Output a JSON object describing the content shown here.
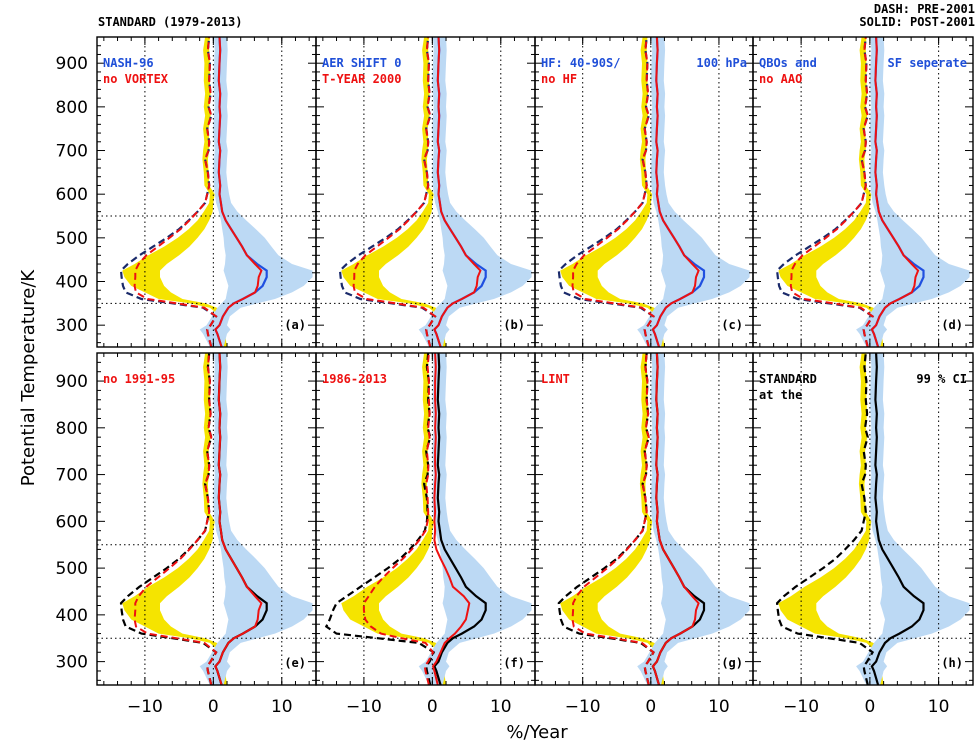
{
  "header": {
    "left": "STANDARD (1979-2013)",
    "right_line1": "DASH:   PRE-2001",
    "right_line2": "SOLID: POST-2001"
  },
  "axes": {
    "ylabel": "Potential Temperature/K",
    "xlabel": "%/Year",
    "xlim": [
      -17,
      15
    ],
    "ylim": [
      250,
      960
    ],
    "xticks": [
      -10,
      0,
      10
    ],
    "xtick_labels": [
      "−10",
      "0",
      "10"
    ],
    "yticks": [
      300,
      400,
      500,
      600,
      700,
      800,
      900
    ],
    "ytick_labels": [
      "300",
      "400",
      "500",
      "600",
      "700",
      "800",
      "900"
    ],
    "dotted_hlines": [
      350,
      550
    ],
    "dotted_vlines": [
      -10,
      0,
      10
    ]
  },
  "colors": {
    "yellow_band": "#f5e400",
    "blue_band": "#bcd9f4",
    "standard": "#000000",
    "test_pre": "#ee1111",
    "test_post": "#ee1111",
    "blue_label": "#1f4fd8",
    "red_label": "#ee1111"
  },
  "chart_data": [
    {
      "panel_label": "(a)",
      "type": "line",
      "label_line1": "NASH-96",
      "label_line1_color": "blue",
      "label_line2": "no VORTEX",
      "label_line2_color": "red",
      "label_right": "",
      "label_right_color": "blue",
      "show_test_series": true,
      "std_pre_color": "#1a2a6a",
      "std_post_color": "#2050e0"
    },
    {
      "panel_label": "(b)",
      "type": "line",
      "label_line1": "AER SHIFT 0",
      "label_line1_color": "blue",
      "label_line2": "T-YEAR 2000",
      "label_line2_color": "red",
      "label_right": "",
      "label_right_color": "blue",
      "show_test_series": true,
      "std_pre_color": "#1a2a6a",
      "std_post_color": "#2050e0"
    },
    {
      "panel_label": "(c)",
      "type": "line",
      "label_line1": "HF: 40-90S/",
      "label_line1_color": "blue",
      "label_line2": "no HF",
      "label_line2_color": "red",
      "label_right": "100 hPa",
      "label_right_color": "blue",
      "show_test_series": true,
      "std_pre_color": "#1a2a6a",
      "std_post_color": "#2050e0"
    },
    {
      "panel_label": "(d)",
      "type": "line",
      "label_line1": "QBOs and",
      "label_line1_color": "blue",
      "label_line2": "no AAO",
      "label_line2_color": "red",
      "label_right": "SF seperate",
      "label_right_color": "blue",
      "show_test_series": true,
      "std_pre_color": "#1a2a6a",
      "std_post_color": "#2050e0"
    },
    {
      "panel_label": "(e)",
      "type": "line",
      "label_line1": "no 1991-95",
      "label_line1_color": "red",
      "label_line2": "",
      "label_line2_color": "red",
      "label_right": "",
      "label_right_color": "blue",
      "show_test_series": true,
      "std_pre_color": "#000000",
      "std_post_color": "#000000"
    },
    {
      "panel_label": "(f)",
      "type": "line",
      "label_line1": "1986-2013",
      "label_line1_color": "red",
      "label_line2": "",
      "label_line2_color": "red",
      "label_right": "",
      "label_right_color": "blue",
      "show_test_series": true,
      "std_pre_color": "#000000",
      "std_post_color": "#000000",
      "variant": "shifted"
    },
    {
      "panel_label": "(g)",
      "type": "line",
      "label_line1": "LINT",
      "label_line1_color": "red",
      "label_line2": "",
      "label_line2_color": "red",
      "label_right": "",
      "label_right_color": "blue",
      "show_test_series": true,
      "std_pre_color": "#000000",
      "std_post_color": "#000000"
    },
    {
      "panel_label": "(h)",
      "type": "line",
      "label_line1": "STANDARD",
      "label_line1_color": "black",
      "label_line2": "at the",
      "label_line2_color": "black",
      "label_right": "99 % CI",
      "label_right_color": "black",
      "show_test_series": false,
      "std_pre_color": "#000000",
      "std_post_color": "#000000"
    }
  ],
  "profiles": {
    "theta": [
      250,
      280,
      290,
      300,
      320,
      340,
      350,
      360,
      375,
      390,
      410,
      425,
      440,
      460,
      480,
      500,
      520,
      540,
      560,
      580,
      600,
      620,
      650,
      680,
      700,
      720,
      750,
      780,
      800,
      830,
      860,
      900,
      930,
      960
    ],
    "std_pre": [
      -0.3,
      -0.8,
      -0.9,
      -0.4,
      0.4,
      -1.5,
      -6.0,
      -10.5,
      -12.8,
      -13.2,
      -13.4,
      -13.5,
      -12.5,
      -10.8,
      -8.8,
      -6.8,
      -5.0,
      -3.6,
      -2.3,
      -1.2,
      -0.9,
      -0.6,
      -0.8,
      -1.2,
      -0.7,
      -0.6,
      -0.9,
      -0.3,
      -0.7,
      -0.4,
      -0.6,
      -0.5,
      -0.8,
      -0.6
    ],
    "std_post": [
      1.2,
      0.6,
      0.3,
      0.9,
      1.4,
      2.2,
      3.0,
      4.3,
      6.1,
      7.2,
      7.8,
      7.8,
      6.4,
      4.9,
      4.2,
      3.4,
      2.6,
      1.8,
      1.3,
      1.1,
      0.9,
      1.0,
      0.8,
      0.9,
      1.0,
      0.8,
      0.9,
      1.0,
      0.9,
      1.0,
      0.8,
      0.9,
      1.0,
      0.9
    ],
    "yellow_low": [
      0.4,
      -0.3,
      -0.4,
      0.2,
      1.0,
      -0.5,
      -3.5,
      -8.0,
      -10.0,
      -12.0,
      -13.0,
      -13.3,
      -11.5,
      -9.5,
      -7.2,
      -5.2,
      -3.6,
      -2.3,
      -1.4,
      -0.6,
      -0.5,
      -1.3,
      -1.4,
      -1.6,
      -1.5,
      -1.3,
      -1.5,
      -1.2,
      -1.4,
      -1.2,
      -1.4,
      -1.3,
      -1.5,
      -1.2
    ],
    "yellow_high": [
      2.0,
      1.7,
      1.5,
      1.9,
      2.3,
      0.5,
      -1.2,
      -4.5,
      -6.2,
      -7.2,
      -7.8,
      -7.8,
      -6.8,
      -5.0,
      -3.5,
      -2.3,
      -1.3,
      -0.6,
      -0.1,
      0.0,
      0.2,
      -0.6,
      -0.7,
      -0.8,
      -0.6,
      -0.6,
      -0.7,
      -0.4,
      -0.6,
      -0.4,
      -0.5,
      -0.5,
      -0.6,
      -0.5
    ],
    "blue_low": [
      -0.5,
      -1.5,
      -2.0,
      -1.0,
      -0.2,
      0.6,
      1.2,
      1.8,
      2.0,
      2.2,
      1.8,
      1.5,
      1.7,
      1.8,
      1.6,
      1.5,
      1.3,
      1.1,
      0.8,
      0.4,
      0.2,
      0.1,
      0.0,
      0.1,
      0.2,
      0.1,
      0.0,
      0.1,
      0.2,
      0.1,
      0.0,
      0.1,
      0.2,
      0.1
    ],
    "blue_high": [
      1.5,
      2.0,
      2.5,
      2.0,
      2.4,
      4.0,
      6.5,
      9.0,
      11.5,
      13.2,
      14.5,
      14.5,
      11.5,
      9.5,
      8.5,
      7.5,
      6.2,
      4.8,
      3.5,
      2.6,
      2.3,
      2.1,
      1.9,
      2.0,
      2.1,
      1.9,
      2.0,
      2.1,
      2.0,
      2.1,
      1.9,
      2.0,
      2.1,
      2.0
    ],
    "test_pre_offset_dash": [
      0,
      0,
      0,
      0,
      0,
      0.2,
      0.6,
      0.9,
      1.5,
      1.7,
      2.0,
      2.1,
      1.6,
      1.0,
      0.7,
      0.4,
      0.2,
      0.1,
      0,
      0,
      0,
      0,
      0,
      0,
      0,
      0,
      0,
      0,
      0,
      0,
      0,
      0,
      0,
      0
    ],
    "test_post_scale": [
      1,
      1,
      1,
      1,
      1,
      1,
      1,
      1,
      1,
      0.9,
      0.85,
      0.9,
      0.95,
      1,
      1,
      1,
      1,
      1,
      1,
      1,
      1,
      1,
      1,
      1,
      1,
      1,
      1,
      1,
      1,
      1,
      1,
      1,
      1,
      1
    ],
    "variant_f_pre": [
      -0.3,
      -0.8,
      -0.9,
      -0.4,
      0.2,
      -2.0,
      -8.0,
      -14.0,
      -15.5,
      -15.0,
      -14.5,
      -14.0,
      -12.5,
      -10.5,
      -8.5,
      -6.5,
      -4.7,
      -3.3,
      -2.1,
      -1.1,
      -0.8,
      -0.7,
      -0.8,
      -1.2,
      -0.7,
      -0.6,
      -0.9,
      -0.3,
      -0.7,
      -0.4,
      -0.6,
      -0.5,
      -0.8,
      -0.6
    ],
    "variant_f_test_pre": [
      -0.5,
      -1.0,
      -1.1,
      -0.6,
      0.1,
      -1.0,
      -4.5,
      -7.5,
      -9.0,
      -9.8,
      -10.0,
      -10.0,
      -9.3,
      -8.4,
      -7.2,
      -5.8,
      -4.3,
      -3.0,
      -1.9,
      -1.0,
      -0.7,
      -0.6,
      -0.7,
      -0.9,
      -0.6,
      -0.6,
      -0.8,
      -0.4,
      -0.6,
      -0.4,
      -0.5,
      -0.5,
      -0.7,
      -0.5
    ],
    "variant_f_test_post": [
      0.8,
      0.3,
      0.1,
      0.6,
      1.2,
      1.8,
      2.5,
      3.3,
      4.2,
      4.9,
      5.2,
      5.4,
      4.6,
      3.0,
      2.5,
      1.9,
      1.2,
      0.6,
      0.3,
      0.4,
      0.3,
      0.4,
      0.3,
      0.4,
      0.5,
      0.4,
      0.4,
      0.5,
      0.4,
      0.5,
      0.4,
      0.4,
      0.5,
      0.4
    ]
  }
}
